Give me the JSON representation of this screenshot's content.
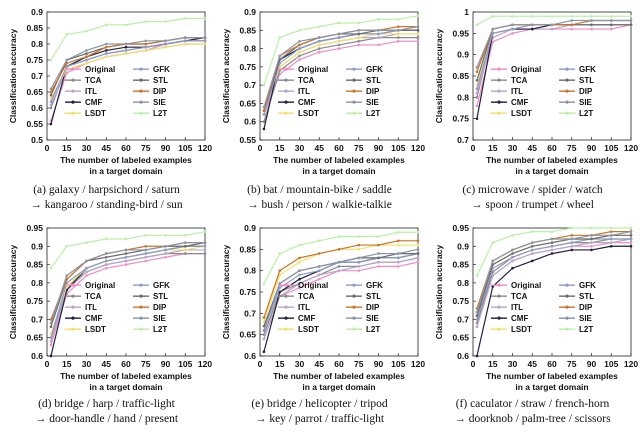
{
  "xlabel_line1": "The number of labeled examples",
  "xlabel_line2": "in a target domain",
  "ylabel": "Classification accuracy",
  "colors": {
    "Original": "#ef8cc6",
    "TCA": "#8a8a8a",
    "ITL": "#b7a6c9",
    "CMF": "#1f1f40",
    "LSDT": "#f2e06a",
    "GFK": "#8d9cc7",
    "STL": "#6b6b6b",
    "DIP": "#c9752a",
    "SIE": "#8a95a8",
    "L2T": "#b7f0a6"
  },
  "chart_data": [
    {
      "type": "line",
      "caption_line1": "(a) galaxy / harpsichord / saturn",
      "caption_line2": "→ kangaroo / standing-bird / sun",
      "xlabel": "The number of labeled examples in a target domain",
      "ylabel": "Classification accuracy",
      "x": [
        3,
        15,
        30,
        45,
        60,
        75,
        90,
        105,
        120
      ],
      "xticks": [
        0,
        15,
        30,
        45,
        60,
        75,
        90,
        105,
        120
      ],
      "ylim": [
        0.5,
        0.9
      ],
      "yticks": [
        "0.5",
        "0.55",
        "0.6",
        "0.65",
        "0.7",
        "0.75",
        "0.8",
        "0.85",
        "0.9"
      ],
      "series": [
        {
          "name": "Original",
          "values": [
            0.56,
            0.71,
            0.74,
            0.76,
            0.77,
            0.78,
            0.8,
            0.81,
            0.81
          ]
        },
        {
          "name": "TCA",
          "values": [
            0.6,
            0.73,
            0.75,
            0.77,
            0.78,
            0.79,
            0.8,
            0.81,
            0.81
          ]
        },
        {
          "name": "ITL",
          "values": [
            0.61,
            0.72,
            0.74,
            0.76,
            0.77,
            0.78,
            0.79,
            0.8,
            0.8
          ]
        },
        {
          "name": "CMF",
          "values": [
            0.55,
            0.73,
            0.76,
            0.78,
            0.79,
            0.79,
            0.8,
            0.81,
            0.82
          ]
        },
        {
          "name": "LSDT",
          "values": [
            0.63,
            0.72,
            0.74,
            0.76,
            0.77,
            0.78,
            0.79,
            0.8,
            0.8
          ]
        },
        {
          "name": "GFK",
          "values": [
            0.62,
            0.73,
            0.75,
            0.77,
            0.78,
            0.79,
            0.8,
            0.81,
            0.81
          ]
        },
        {
          "name": "STL",
          "values": [
            0.64,
            0.75,
            0.77,
            0.79,
            0.8,
            0.8,
            0.81,
            0.82,
            0.82
          ]
        },
        {
          "name": "DIP",
          "values": [
            0.65,
            0.74,
            0.76,
            0.79,
            0.8,
            0.8,
            0.81,
            0.82,
            0.82
          ]
        },
        {
          "name": "SIE",
          "values": [
            0.66,
            0.75,
            0.78,
            0.8,
            0.8,
            0.81,
            0.81,
            0.82,
            0.82
          ]
        },
        {
          "name": "L2T",
          "values": [
            0.75,
            0.83,
            0.84,
            0.86,
            0.86,
            0.87,
            0.87,
            0.88,
            0.88
          ]
        }
      ]
    },
    {
      "type": "line",
      "caption_line1": "(b) bat / mountain-bike / saddle",
      "caption_line2": "→ bush / person / walkie-talkie",
      "xlabel": "The number of labeled examples in a target domain",
      "ylabel": "Classification accuracy",
      "x": [
        3,
        15,
        30,
        45,
        60,
        75,
        90,
        105,
        120
      ],
      "xticks": [
        0,
        15,
        30,
        45,
        60,
        75,
        90,
        105,
        120
      ],
      "ylim": [
        0.55,
        0.9
      ],
      "yticks": [
        "0.55",
        "0.6",
        "0.65",
        "0.7",
        "0.75",
        "0.8",
        "0.85",
        "0.9"
      ],
      "series": [
        {
          "name": "Original",
          "values": [
            0.62,
            0.73,
            0.77,
            0.79,
            0.8,
            0.81,
            0.81,
            0.82,
            0.82
          ]
        },
        {
          "name": "TCA",
          "values": [
            0.6,
            0.74,
            0.78,
            0.8,
            0.81,
            0.82,
            0.83,
            0.83,
            0.83
          ]
        },
        {
          "name": "ITL",
          "values": [
            0.63,
            0.75,
            0.79,
            0.81,
            0.82,
            0.83,
            0.83,
            0.84,
            0.84
          ]
        },
        {
          "name": "CMF",
          "values": [
            0.58,
            0.77,
            0.8,
            0.82,
            0.83,
            0.84,
            0.84,
            0.85,
            0.85
          ]
        },
        {
          "name": "LSDT",
          "values": [
            0.64,
            0.75,
            0.79,
            0.81,
            0.82,
            0.83,
            0.84,
            0.84,
            0.84
          ]
        },
        {
          "name": "GFK",
          "values": [
            0.62,
            0.76,
            0.8,
            0.82,
            0.83,
            0.84,
            0.84,
            0.85,
            0.85
          ]
        },
        {
          "name": "STL",
          "values": [
            0.63,
            0.77,
            0.81,
            0.83,
            0.84,
            0.84,
            0.85,
            0.85,
            0.85
          ]
        },
        {
          "name": "DIP",
          "values": [
            0.63,
            0.78,
            0.81,
            0.83,
            0.84,
            0.85,
            0.85,
            0.86,
            0.86
          ]
        },
        {
          "name": "SIE",
          "values": [
            0.64,
            0.78,
            0.82,
            0.83,
            0.84,
            0.85,
            0.85,
            0.85,
            0.86
          ]
        },
        {
          "name": "L2T",
          "values": [
            0.7,
            0.83,
            0.85,
            0.86,
            0.87,
            0.87,
            0.88,
            0.88,
            0.89
          ]
        }
      ]
    },
    {
      "type": "line",
      "caption_line1": "(c) microwave / spider / watch",
      "caption_line2": "→ spoon / trumpet / wheel",
      "xlabel": "The number of labeled examples in a target domain",
      "ylabel": "Classification accuracy",
      "x": [
        3,
        15,
        30,
        45,
        60,
        75,
        90,
        105,
        120
      ],
      "xticks": [
        0,
        15,
        30,
        45,
        60,
        75,
        90,
        105,
        120
      ],
      "ylim": [
        0.7,
        1.0
      ],
      "yticks": [
        "0.7",
        "0.75",
        "0.8",
        "0.85",
        "0.9",
        "0.95",
        "1"
      ],
      "series": [
        {
          "name": "Original",
          "values": [
            0.78,
            0.93,
            0.95,
            0.96,
            0.96,
            0.96,
            0.96,
            0.96,
            0.97
          ]
        },
        {
          "name": "TCA",
          "values": [
            0.8,
            0.95,
            0.96,
            0.96,
            0.97,
            0.97,
            0.97,
            0.97,
            0.97
          ]
        },
        {
          "name": "ITL",
          "values": [
            0.81,
            0.94,
            0.96,
            0.96,
            0.96,
            0.97,
            0.97,
            0.97,
            0.97
          ]
        },
        {
          "name": "CMF",
          "values": [
            0.75,
            0.95,
            0.96,
            0.96,
            0.97,
            0.97,
            0.97,
            0.97,
            0.97
          ]
        },
        {
          "name": "LSDT",
          "values": [
            0.83,
            0.95,
            0.96,
            0.97,
            0.97,
            0.97,
            0.97,
            0.97,
            0.97
          ]
        },
        {
          "name": "GFK",
          "values": [
            0.82,
            0.95,
            0.96,
            0.97,
            0.97,
            0.97,
            0.97,
            0.97,
            0.97
          ]
        },
        {
          "name": "STL",
          "values": [
            0.84,
            0.96,
            0.97,
            0.97,
            0.97,
            0.97,
            0.97,
            0.97,
            0.97
          ]
        },
        {
          "name": "DIP",
          "values": [
            0.86,
            0.96,
            0.97,
            0.97,
            0.97,
            0.97,
            0.98,
            0.98,
            0.98
          ]
        },
        {
          "name": "SIE",
          "values": [
            0.87,
            0.96,
            0.97,
            0.97,
            0.97,
            0.98,
            0.98,
            0.98,
            0.98
          ]
        },
        {
          "name": "L2T",
          "values": [
            0.97,
            0.99,
            0.99,
            0.99,
            0.99,
            0.99,
            0.99,
            0.99,
            0.99
          ]
        }
      ]
    },
    {
      "type": "line",
      "caption_line1": "(d) bridge / harp / traffic-light",
      "caption_line2": "→ door-handle / hand / present",
      "xlabel": "The number of labeled examples in a target domain",
      "ylabel": "Classification accuracy",
      "x": [
        3,
        15,
        30,
        45,
        60,
        75,
        90,
        105,
        120
      ],
      "xticks": [
        0,
        15,
        30,
        45,
        60,
        75,
        90,
        105,
        120
      ],
      "ylim": [
        0.6,
        0.95
      ],
      "yticks": [
        "0.6",
        "0.65",
        "0.7",
        "0.75",
        "0.8",
        "0.85",
        "0.9",
        "0.95"
      ],
      "series": [
        {
          "name": "Original",
          "values": [
            0.63,
            0.77,
            0.82,
            0.84,
            0.85,
            0.86,
            0.87,
            0.88,
            0.88
          ]
        },
        {
          "name": "TCA",
          "values": [
            0.65,
            0.79,
            0.83,
            0.85,
            0.86,
            0.87,
            0.88,
            0.88,
            0.88
          ]
        },
        {
          "name": "ITL",
          "values": [
            0.64,
            0.78,
            0.83,
            0.85,
            0.86,
            0.87,
            0.88,
            0.89,
            0.89
          ]
        },
        {
          "name": "CMF",
          "values": [
            0.6,
            0.78,
            0.84,
            0.86,
            0.87,
            0.88,
            0.89,
            0.9,
            0.9
          ]
        },
        {
          "name": "LSDT",
          "values": [
            0.66,
            0.79,
            0.84,
            0.86,
            0.87,
            0.88,
            0.89,
            0.89,
            0.9
          ]
        },
        {
          "name": "GFK",
          "values": [
            0.65,
            0.8,
            0.84,
            0.86,
            0.87,
            0.88,
            0.89,
            0.9,
            0.9
          ]
        },
        {
          "name": "STL",
          "values": [
            0.68,
            0.81,
            0.86,
            0.87,
            0.88,
            0.89,
            0.9,
            0.9,
            0.91
          ]
        },
        {
          "name": "DIP",
          "values": [
            0.7,
            0.81,
            0.86,
            0.88,
            0.89,
            0.9,
            0.9,
            0.91,
            0.91
          ]
        },
        {
          "name": "SIE",
          "values": [
            0.69,
            0.82,
            0.86,
            0.88,
            0.89,
            0.89,
            0.9,
            0.91,
            0.91
          ]
        },
        {
          "name": "L2T",
          "values": [
            0.84,
            0.9,
            0.91,
            0.92,
            0.92,
            0.93,
            0.93,
            0.93,
            0.94
          ]
        }
      ]
    },
    {
      "type": "line",
      "caption_line1": "(e) bridge / helicopter / tripod",
      "caption_line2": "→ key / parrot / traffic-light",
      "xlabel": "The number of labeled examples in a target domain",
      "ylabel": "Classification accuracy",
      "x": [
        3,
        15,
        30,
        45,
        60,
        75,
        90,
        105,
        120
      ],
      "xticks": [
        0,
        15,
        30,
        45,
        60,
        75,
        90,
        105,
        120
      ],
      "ylim": [
        0.6,
        0.9
      ],
      "yticks": [
        "0.6",
        "0.65",
        "0.7",
        "0.75",
        "0.8",
        "0.85",
        "0.9"
      ],
      "series": [
        {
          "name": "Original",
          "values": [
            0.64,
            0.74,
            0.76,
            0.78,
            0.8,
            0.8,
            0.81,
            0.81,
            0.82
          ]
        },
        {
          "name": "TCA",
          "values": [
            0.65,
            0.75,
            0.77,
            0.79,
            0.81,
            0.81,
            0.82,
            0.82,
            0.83
          ]
        },
        {
          "name": "ITL",
          "values": [
            0.64,
            0.74,
            0.77,
            0.79,
            0.8,
            0.81,
            0.82,
            0.82,
            0.83
          ]
        },
        {
          "name": "CMF",
          "values": [
            0.61,
            0.75,
            0.78,
            0.8,
            0.82,
            0.82,
            0.83,
            0.83,
            0.84
          ]
        },
        {
          "name": "LSDT",
          "values": [
            0.68,
            0.79,
            0.82,
            0.84,
            0.85,
            0.85,
            0.86,
            0.86,
            0.86
          ]
        },
        {
          "name": "GFK",
          "values": [
            0.66,
            0.76,
            0.79,
            0.8,
            0.82,
            0.82,
            0.83,
            0.83,
            0.84
          ]
        },
        {
          "name": "STL",
          "values": [
            0.67,
            0.77,
            0.8,
            0.81,
            0.82,
            0.83,
            0.83,
            0.84,
            0.84
          ]
        },
        {
          "name": "DIP",
          "values": [
            0.69,
            0.8,
            0.83,
            0.84,
            0.85,
            0.86,
            0.86,
            0.87,
            0.87
          ]
        },
        {
          "name": "SIE",
          "values": [
            0.66,
            0.77,
            0.8,
            0.81,
            0.82,
            0.83,
            0.84,
            0.84,
            0.85
          ]
        },
        {
          "name": "L2T",
          "values": [
            0.77,
            0.84,
            0.86,
            0.87,
            0.88,
            0.88,
            0.88,
            0.89,
            0.89
          ]
        }
      ]
    },
    {
      "type": "line",
      "caption_line1": "(f) caculator / straw / french-horn",
      "caption_line2": "→ doorknob / palm-tree / scissors",
      "xlabel": "The number of labeled examples in a target domain",
      "ylabel": "Classification accuracy",
      "x": [
        3,
        15,
        30,
        45,
        60,
        75,
        90,
        105,
        120
      ],
      "xticks": [
        0,
        15,
        30,
        45,
        60,
        75,
        90,
        105,
        120
      ],
      "ylim": [
        0.6,
        0.95
      ],
      "yticks": [
        "0.6",
        "0.65",
        "0.7",
        "0.75",
        "0.8",
        "0.85",
        "0.9",
        "0.95"
      ],
      "series": [
        {
          "name": "Original",
          "values": [
            0.68,
            0.82,
            0.86,
            0.88,
            0.89,
            0.9,
            0.9,
            0.91,
            0.91
          ]
        },
        {
          "name": "TCA",
          "values": [
            0.69,
            0.83,
            0.87,
            0.89,
            0.9,
            0.91,
            0.91,
            0.92,
            0.92
          ]
        },
        {
          "name": "ITL",
          "values": [
            0.68,
            0.82,
            0.86,
            0.88,
            0.89,
            0.9,
            0.91,
            0.91,
            0.92
          ]
        },
        {
          "name": "CMF",
          "values": [
            0.6,
            0.79,
            0.84,
            0.86,
            0.88,
            0.89,
            0.89,
            0.9,
            0.9
          ]
        },
        {
          "name": "LSDT",
          "values": [
            0.72,
            0.85,
            0.88,
            0.9,
            0.91,
            0.92,
            0.92,
            0.93,
            0.93
          ]
        },
        {
          "name": "GFK",
          "values": [
            0.7,
            0.84,
            0.87,
            0.89,
            0.9,
            0.91,
            0.92,
            0.92,
            0.92
          ]
        },
        {
          "name": "STL",
          "values": [
            0.71,
            0.85,
            0.88,
            0.9,
            0.91,
            0.92,
            0.92,
            0.93,
            0.93
          ]
        },
        {
          "name": "DIP",
          "values": [
            0.73,
            0.86,
            0.89,
            0.91,
            0.92,
            0.93,
            0.93,
            0.94,
            0.94
          ]
        },
        {
          "name": "SIE",
          "values": [
            0.72,
            0.86,
            0.89,
            0.91,
            0.92,
            0.92,
            0.93,
            0.93,
            0.94
          ]
        },
        {
          "name": "L2T",
          "values": [
            0.82,
            0.91,
            0.93,
            0.94,
            0.94,
            0.95,
            0.95,
            0.95,
            0.95
          ]
        }
      ]
    }
  ]
}
